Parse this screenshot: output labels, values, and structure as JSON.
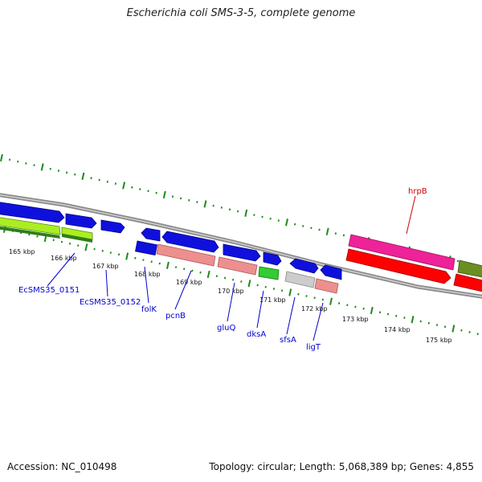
{
  "title": "Escherichia coli SMS-3-5, complete genome",
  "footer": {
    "accession": "Accession: NC_010498",
    "summary": "Topology: circular; Length: 5,068,389 bp; Genes: 4,855"
  },
  "colors": {
    "tick": "#1b8a1b",
    "backbone": "#808080",
    "forward_label": "#0000cc",
    "reverse_label": "#cc0000"
  },
  "ticks": [
    "165 kbp",
    "166 kbp",
    "167 kbp",
    "168 kbp",
    "169 kbp",
    "170 kbp",
    "171 kbp",
    "172 kbp",
    "173 kbp",
    "174 kbp",
    "175 kbp"
  ],
  "genes": [
    {
      "label": "EcSMS35_0151"
    },
    {
      "label": "EcSMS35_0152"
    },
    {
      "label": "folK"
    },
    {
      "label": "pcnB"
    },
    {
      "label": "gluQ"
    },
    {
      "label": "dksA"
    },
    {
      "label": "sfsA"
    },
    {
      "label": "ligT"
    },
    {
      "label": "hrpB"
    }
  ]
}
